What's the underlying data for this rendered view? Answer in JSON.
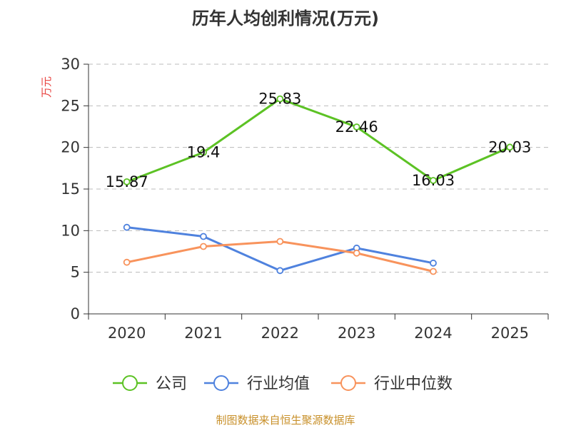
{
  "title": "历年人均创利情况(万元)",
  "footer": "制图数据来自恒生聚源数据库",
  "colors": {
    "company": "#5cc224",
    "industry_avg": "#4f82de",
    "industry_median": "#f8935c",
    "axis": "#333333",
    "grid": "#bbbbbb",
    "ylabel": "#e8423f"
  },
  "chart_data": {
    "type": "line",
    "title": "历年人均创利情况(万元)",
    "ylabel": "万元",
    "xlabel": "",
    "categories": [
      "2020",
      "2021",
      "2022",
      "2023",
      "2024",
      "2025"
    ],
    "ylim": [
      0,
      30
    ],
    "yticks": [
      "0",
      "5",
      "10",
      "15",
      "20",
      "25",
      "30"
    ],
    "grid": true,
    "legend_position": "bottom",
    "series": [
      {
        "name": "公司",
        "key": "company",
        "values": [
          15.87,
          19.4,
          25.83,
          22.46,
          16.03,
          20.03
        ],
        "labels": [
          "15.87",
          "19.4",
          "25.83",
          "22.46",
          "16.03",
          "20.03"
        ]
      },
      {
        "name": "行业均值",
        "key": "industry_avg",
        "values": [
          10.4,
          9.3,
          5.2,
          7.9,
          6.1,
          null
        ]
      },
      {
        "name": "行业中位数",
        "key": "industry_median",
        "values": [
          6.2,
          8.1,
          8.7,
          7.3,
          5.1,
          null
        ]
      }
    ]
  }
}
